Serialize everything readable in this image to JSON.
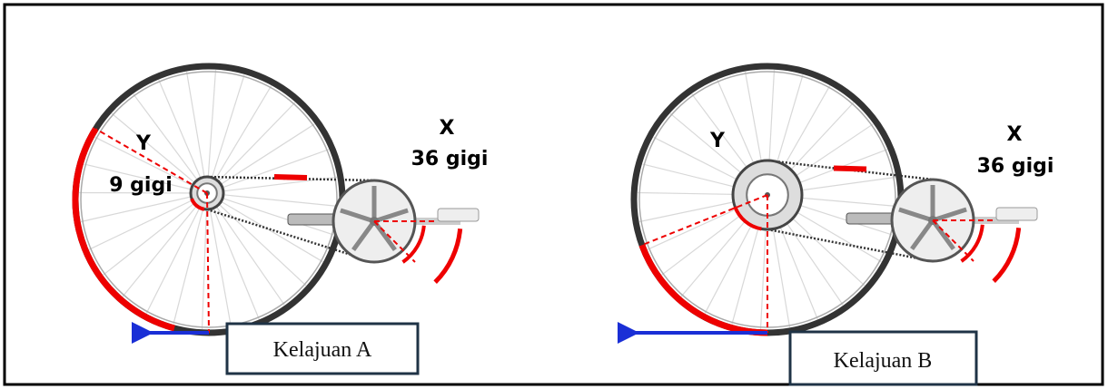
{
  "panels": [
    {
      "rear_label": "Y",
      "rear_teeth": "9 gigi",
      "front_label": "X",
      "front_teeth": "36 gigi",
      "speed_label": "Kelajuan A"
    },
    {
      "rear_label": "Y",
      "front_label": "X",
      "front_teeth": "36 gigi",
      "speed_label": "Kelajuan B"
    }
  ]
}
